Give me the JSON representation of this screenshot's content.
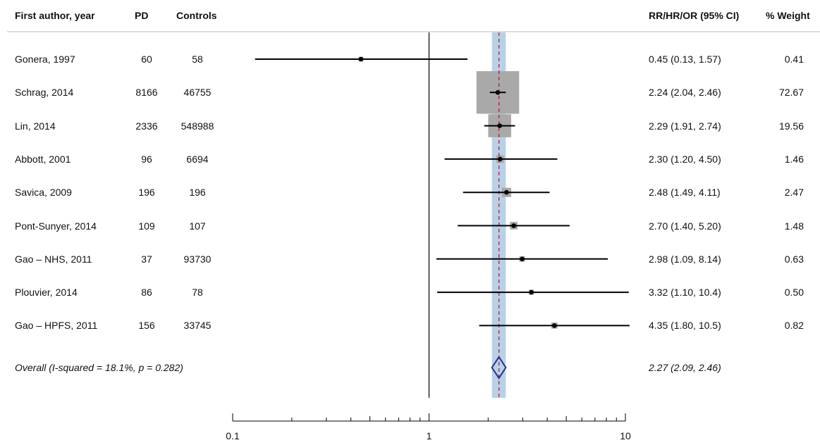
{
  "headers": {
    "author": "First author, year",
    "pd": "PD",
    "controls": "Controls",
    "effect": "RR/HR/OR (95% CI)",
    "weight": "% Weight"
  },
  "chart_data": {
    "type": "forest",
    "x_scale": "log",
    "xlim": [
      0.1,
      10
    ],
    "xticks": [
      0.1,
      1,
      10
    ],
    "xtick_labels": [
      "0.1",
      "1",
      "10"
    ],
    "null_line": 1,
    "pooled_ci_band": [
      2.09,
      2.46
    ],
    "colors": {
      "ci_band": "#b9d1e6",
      "weight_box": "#a9a9a9",
      "diamond": "#2b2f8f",
      "pooled_line": "#b0203a"
    },
    "studies": [
      {
        "author": "Gonera, 1997",
        "pd": "60",
        "controls": "58",
        "est": 0.45,
        "lo": 0.13,
        "hi": 1.57,
        "effect_label": "0.45 (0.13, 1.57)",
        "weight": 0.41,
        "weight_label": "0.41"
      },
      {
        "author": "Schrag, 2014",
        "pd": "8166",
        "controls": "46755",
        "est": 2.24,
        "lo": 2.04,
        "hi": 2.46,
        "effect_label": "2.24 (2.04, 2.46)",
        "weight": 72.67,
        "weight_label": "72.67"
      },
      {
        "author": "Lin, 2014",
        "pd": "2336",
        "controls": "548988",
        "est": 2.29,
        "lo": 1.91,
        "hi": 2.74,
        "effect_label": "2.29 (1.91, 2.74)",
        "weight": 19.56,
        "weight_label": "19.56"
      },
      {
        "author": "Abbott, 2001",
        "pd": "96",
        "controls": "6694",
        "est": 2.3,
        "lo": 1.2,
        "hi": 4.5,
        "effect_label": "2.30 (1.20, 4.50)",
        "weight": 1.46,
        "weight_label": "1.46"
      },
      {
        "author": "Savica, 2009",
        "pd": "196",
        "controls": "196",
        "est": 2.48,
        "lo": 1.49,
        "hi": 4.11,
        "effect_label": "2.48 (1.49, 4.11)",
        "weight": 2.47,
        "weight_label": "2.47"
      },
      {
        "author": "Pont-Sunyer, 2014",
        "pd": "109",
        "controls": "107",
        "est": 2.7,
        "lo": 1.4,
        "hi": 5.2,
        "effect_label": "2.70 (1.40, 5.20)",
        "weight": 1.48,
        "weight_label": "1.48"
      },
      {
        "author": "Gao – NHS, 2011",
        "pd": "37",
        "controls": "93730",
        "est": 2.98,
        "lo": 1.09,
        "hi": 8.14,
        "effect_label": "2.98 (1.09, 8.14)",
        "weight": 0.63,
        "weight_label": "0.63"
      },
      {
        "author": "Plouvier, 2014",
        "pd": "86",
        "controls": "78",
        "est": 3.32,
        "lo": 1.1,
        "hi": 10.4,
        "effect_label": "3.32 (1.10, 10.4)",
        "weight": 0.5,
        "weight_label": "0.50"
      },
      {
        "author": "Gao – HPFS, 2011",
        "pd": "156",
        "controls": "33745",
        "est": 4.35,
        "lo": 1.8,
        "hi": 10.5,
        "effect_label": "4.35 (1.80, 10.5)",
        "weight": 0.82,
        "weight_label": "0.82"
      }
    ],
    "overall": {
      "label": "Overall  (I-squared = 18.1%, p = 0.282)",
      "est": 2.27,
      "lo": 2.09,
      "hi": 2.46,
      "effect_label": "2.27 (2.09, 2.46)"
    }
  }
}
